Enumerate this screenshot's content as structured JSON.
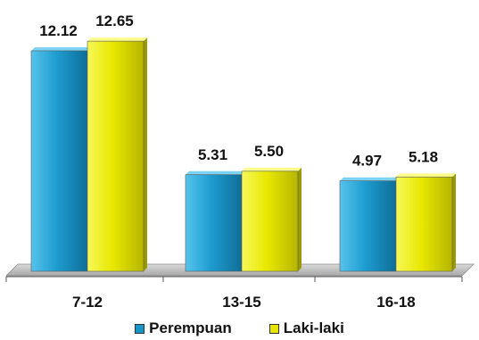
{
  "chart_data": {
    "type": "bar",
    "categories": [
      "7-12",
      "13-15",
      "16-18"
    ],
    "series": [
      {
        "name": "Perempuan",
        "values": [
          12.12,
          5.31,
          4.97
        ],
        "color": "#1996C9"
      },
      {
        "name": "Laki-laki",
        "values": [
          12.65,
          5.5,
          5.18
        ],
        "color": "#E6E600"
      }
    ],
    "value_labels": [
      [
        "12.12",
        "5.31",
        "4.97"
      ],
      [
        "12.65",
        "5.50",
        "5.18"
      ]
    ],
    "title": "",
    "xlabel": "",
    "ylabel": "",
    "ylim": [
      0,
      13
    ],
    "grid": false,
    "legend_position": "bottom",
    "floor_color": "#BDBDBD"
  }
}
